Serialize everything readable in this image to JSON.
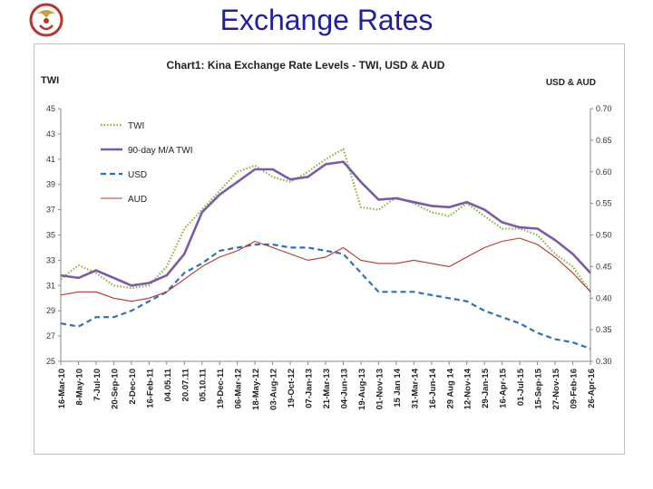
{
  "page": {
    "title": "Exchange Rates"
  },
  "chart_data": {
    "type": "line",
    "title": "Chart1: Kina Exchange Rate Levels - TWI, USD & AUD",
    "left_axis": {
      "label": "TWI",
      "range": [
        25,
        45
      ],
      "ticks": [
        25,
        27,
        29,
        31,
        33,
        35,
        37,
        39,
        41,
        43,
        45
      ]
    },
    "right_axis": {
      "label": "USD & AUD",
      "range": [
        0.3,
        0.7
      ],
      "ticks": [
        "0.30",
        "0.35",
        "0.40",
        "0.45",
        "0.50",
        "0.55",
        "0.60",
        "0.65",
        "0.70"
      ]
    },
    "categories": [
      "16-Mar-10",
      "8-May-10",
      "7-Jul-10",
      "20-Sep-10",
      "2-Dec-10",
      "16-Feb-11",
      "04.05.11",
      "20.07.11",
      "05.10.11",
      "19-Dec-11",
      "06-Mar-12",
      "18-May-12",
      "03-Aug-12",
      "19-Oct-12",
      "07-Jan-13",
      "21-Mar-13",
      "04-Jun-13",
      "19-Aug-13",
      "01-Nov-13",
      "15 Jan 14",
      "31-Mar-14",
      "16-Jun-14",
      "29 Aug 14",
      "12-Nov-14",
      "29-Jan-15",
      "16-Apr-15",
      "01-Jul-15",
      "15-Sep-15",
      "27-Nov-15",
      "09-Feb-16",
      "26-Apr-16"
    ],
    "legend": {
      "position": "top-left"
    },
    "series": [
      {
        "name": "TWI",
        "axis": "left",
        "color": "#8db43e",
        "style": "dotted",
        "values": [
          31.5,
          32.6,
          32.0,
          31.0,
          30.8,
          31.0,
          32.5,
          35.5,
          37.0,
          38.5,
          40.0,
          40.5,
          39.6,
          39.2,
          40.0,
          41.0,
          41.8,
          37.2,
          37.0,
          38.0,
          37.5,
          36.8,
          36.5,
          37.5,
          36.5,
          35.5,
          35.5,
          35.0,
          33.5,
          32.5,
          30.5
        ]
      },
      {
        "name": "90-day M/A TWI",
        "axis": "left",
        "color": "#7b5aa6",
        "style": "solid",
        "values": [
          31.8,
          31.6,
          32.2,
          31.6,
          31.0,
          31.2,
          31.8,
          33.5,
          36.8,
          38.2,
          39.2,
          40.2,
          40.2,
          39.4,
          39.6,
          40.6,
          40.8,
          39.2,
          37.8,
          37.9,
          37.6,
          37.3,
          37.2,
          37.6,
          37.0,
          36.0,
          35.6,
          35.5,
          34.6,
          33.5,
          32.0
        ]
      },
      {
        "name": "USD",
        "axis": "right",
        "color": "#3070b5",
        "style": "dashed",
        "values": [
          0.36,
          0.355,
          0.37,
          0.37,
          0.38,
          0.395,
          0.41,
          0.44,
          0.455,
          0.475,
          0.48,
          0.485,
          0.485,
          0.48,
          0.48,
          0.475,
          0.47,
          0.44,
          0.41,
          0.41,
          0.41,
          0.405,
          0.4,
          0.395,
          0.38,
          0.37,
          0.36,
          0.345,
          0.335,
          0.33,
          0.32
        ]
      },
      {
        "name": "AUD",
        "axis": "right",
        "color": "#b5372e",
        "style": "solid",
        "values": [
          0.405,
          0.41,
          0.41,
          0.4,
          0.395,
          0.4,
          0.41,
          0.43,
          0.45,
          0.465,
          0.475,
          0.49,
          0.48,
          0.47,
          0.46,
          0.465,
          0.48,
          0.46,
          0.455,
          0.455,
          0.46,
          0.455,
          0.45,
          0.465,
          0.48,
          0.49,
          0.495,
          0.485,
          0.465,
          0.44,
          0.41
        ]
      }
    ]
  }
}
